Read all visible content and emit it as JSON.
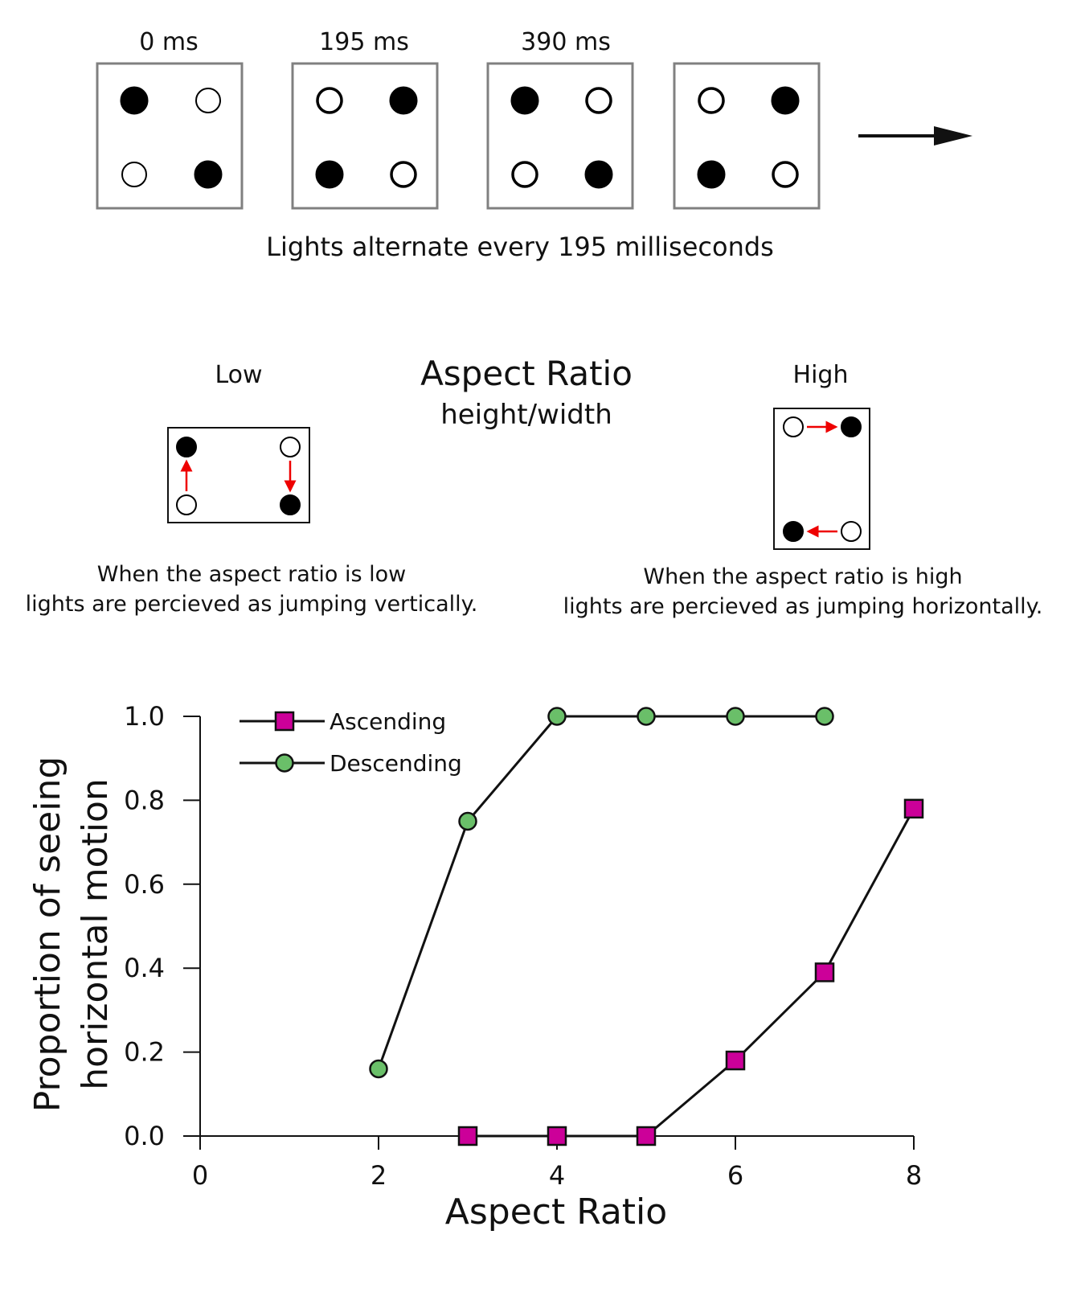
{
  "top_panel": {
    "frame_labels": [
      "0 ms",
      "195 ms",
      "390 ms",
      ""
    ],
    "frames": [
      {
        "tl": "filled",
        "tr": "open",
        "bl": "open",
        "br": "filled"
      },
      {
        "tl": "open",
        "tr": "filled",
        "bl": "filled",
        "br": "open"
      },
      {
        "tl": "filled",
        "tr": "open",
        "bl": "open",
        "br": "filled"
      },
      {
        "tl": "open",
        "tr": "filled",
        "bl": "filled",
        "br": "open"
      }
    ],
    "caption": "Lights alternate every 195 milliseconds"
  },
  "middle_panel": {
    "title": "Aspect Ratio",
    "subtitle": "height/width",
    "low": {
      "label": "Low",
      "caption_line1": "When the aspect ratio is low",
      "caption_line2": "lights are percieved as jumping vertically."
    },
    "high": {
      "label": "High",
      "caption_line1": "When the aspect ratio is high",
      "caption_line2": "lights are percieved as jumping horizontally."
    },
    "arrow_color": "#ee0000"
  },
  "chart_data": {
    "type": "line",
    "xlabel": "Aspect Ratio",
    "ylabel_line1": "Proportion of seeing",
    "ylabel_line2": "horizontal motion",
    "xlim": [
      0,
      8
    ],
    "ylim": [
      0,
      1
    ],
    "xticks": [
      0,
      2,
      4,
      6,
      8
    ],
    "xtick_labels": [
      "0",
      "2",
      "4",
      "6",
      "8"
    ],
    "yticks": [
      0,
      0.2,
      0.4,
      0.6,
      0.8,
      1.0
    ],
    "ytick_labels": [
      "0.0",
      "0.2",
      "0.4",
      "0.6",
      "0.8",
      "1.0"
    ],
    "legend_position": "top-left",
    "series": [
      {
        "name": "Ascending",
        "marker": "square",
        "color": "#cc0099",
        "x": [
          3,
          4,
          5,
          6,
          7,
          8
        ],
        "y": [
          0.0,
          0.0,
          0.0,
          0.18,
          0.39,
          0.78
        ]
      },
      {
        "name": "Descending",
        "marker": "circle",
        "color": "#6abf69",
        "x": [
          2,
          3,
          4,
          5,
          6,
          7
        ],
        "y": [
          0.16,
          0.75,
          1.0,
          1.0,
          1.0,
          1.0
        ]
      }
    ]
  }
}
